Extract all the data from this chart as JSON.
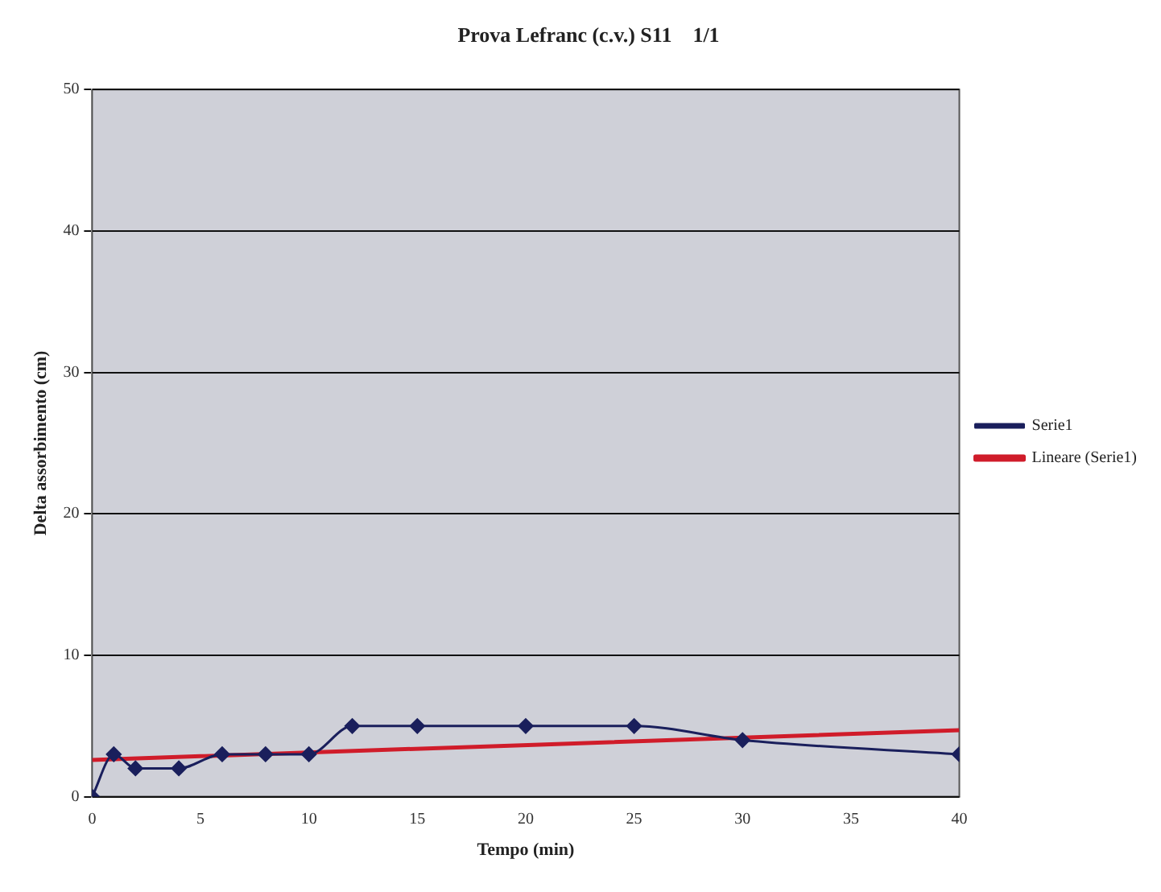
{
  "chart_data": {
    "type": "line",
    "title": "Prova Lefranc (c.v.) S11    1/1",
    "xlabel": "Tempo (min)",
    "ylabel": "Delta assorbimento (cm)",
    "xlim": [
      0,
      40
    ],
    "xticks": [
      0,
      5,
      10,
      15,
      20,
      25,
      30,
      35,
      40
    ],
    "ylim": [
      0,
      50
    ],
    "yticks": [
      0,
      10,
      20,
      30,
      40,
      50
    ],
    "grid": "y",
    "legend": "right",
    "marker": "diamond",
    "line_style": "solid",
    "series": [
      {
        "name": "Serie1",
        "color": "#1a1f5c",
        "x": [
          0,
          1,
          2,
          4,
          6,
          8,
          10,
          12,
          15,
          20,
          25,
          30,
          40
        ],
        "values": [
          0,
          3,
          2,
          2,
          3,
          3,
          3,
          5,
          5,
          5,
          5,
          4,
          3
        ]
      },
      {
        "name": "Lineare (Serie1)",
        "color": "#d01c2a",
        "type": "line",
        "marker": "none",
        "x": [
          0,
          40
        ],
        "values": [
          2.6,
          4.7
        ]
      }
    ]
  }
}
